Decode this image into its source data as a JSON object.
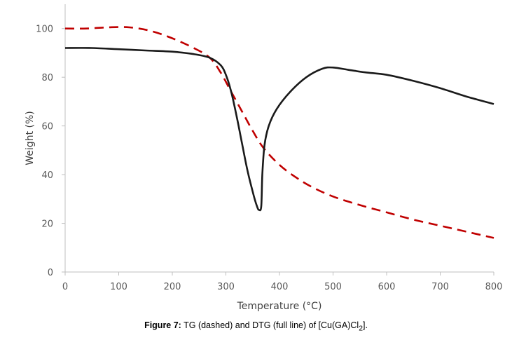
{
  "chart_data": {
    "type": "line",
    "xlabel": "Temperature (°C)",
    "ylabel": "Weight (%)",
    "xlim": [
      0,
      800
    ],
    "ylim": [
      0,
      110
    ],
    "xticks": [
      "0",
      "100",
      "200",
      "300",
      "400",
      "500",
      "600",
      "700",
      "800"
    ],
    "yticks": [
      "0",
      "20",
      "40",
      "60",
      "80",
      "100"
    ],
    "grid": false,
    "legend": "none",
    "series": [
      {
        "style": "dashed",
        "color": "#C00000",
        "x": [
          0,
          40,
          80,
          120,
          160,
          200,
          240,
          270,
          290,
          310,
          330,
          350,
          370,
          400,
          430,
          460,
          500,
          550,
          600,
          650,
          700,
          750,
          800
        ],
        "y": [
          100,
          100,
          100.5,
          100.5,
          99,
          96,
          92,
          88,
          82,
          74,
          66,
          58,
          51,
          44,
          39,
          35,
          31,
          27.5,
          24.5,
          21.5,
          19,
          16.5,
          14
        ]
      },
      {
        "style": "solid",
        "color": "#1a1a1a",
        "x": [
          0,
          50,
          100,
          150,
          200,
          240,
          270,
          290,
          300,
          310,
          320,
          330,
          340,
          350,
          358,
          362,
          366,
          368,
          372,
          380,
          395,
          420,
          450,
          480,
          500,
          530,
          560,
          600,
          650,
          700,
          750,
          800
        ],
        "y": [
          92,
          92,
          91.5,
          91,
          90.5,
          89.5,
          88,
          85,
          81,
          74,
          64,
          53,
          42,
          33,
          27,
          25.5,
          27,
          40,
          52,
          60,
          67,
          74,
          80,
          83.5,
          84,
          83,
          82,
          81,
          78.5,
          75.5,
          72,
          69
        ]
      }
    ]
  },
  "caption": {
    "label": "Figure 7:",
    "text_before": " TG (dashed) and DTG (full line) of [Cu(GA)Cl",
    "subscript": "2",
    "text_after": "]."
  }
}
